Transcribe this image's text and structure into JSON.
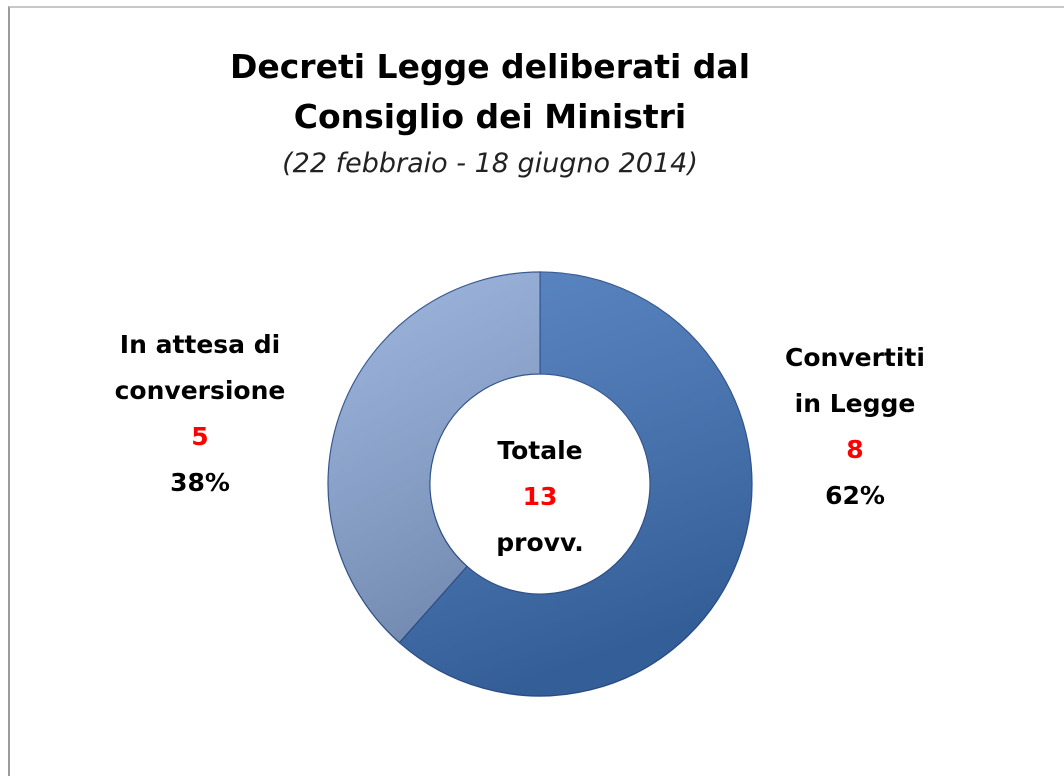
{
  "chart_data": {
    "type": "donut",
    "title": "Decreti Legge deliberati dal Consiglio dei Ministri",
    "subtitle": "(22 febbraio - 18 giugno 2014)",
    "categories": [
      "Convertiti in Legge",
      "In attesa di conversione"
    ],
    "values": [
      8,
      5
    ],
    "percent_labels": [
      "62%",
      "38%"
    ],
    "colors": [
      "#3f72b8",
      "#8eaad9"
    ],
    "center_label": "Totale",
    "total": 13,
    "total_unit": "provv."
  }
}
